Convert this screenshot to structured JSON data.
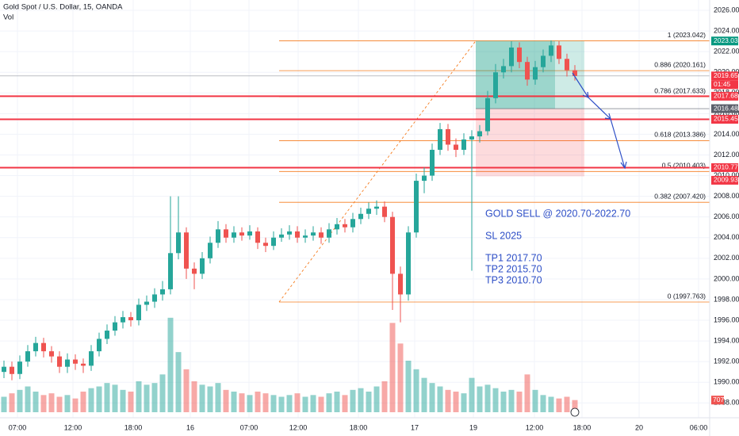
{
  "chart_data": {
    "type": "candlestick",
    "title": "Gold Spot / U.S. Dollar, 15, OANDA",
    "volume_label": "Vol",
    "up_color": "#26a69a",
    "down_color": "#ef5350",
    "xlim": [
      -0.5,
      89
    ],
    "ylim": [
      1987.1,
      2027.0
    ],
    "vol_lim": [
      0,
      6000
    ],
    "grid": true,
    "xticks": [
      {
        "value": 1.7,
        "label": "07:00"
      },
      {
        "value": 8.7,
        "label": "12:00"
      },
      {
        "value": 16.3,
        "label": "18:00"
      },
      {
        "value": 23.5,
        "label": "16"
      },
      {
        "value": 30.9,
        "label": "07:00"
      },
      {
        "value": 37.1,
        "label": "12:00"
      },
      {
        "value": 44.7,
        "label": "18:00"
      },
      {
        "value": 51.8,
        "label": "17"
      },
      {
        "value": 59.2,
        "label": "19"
      },
      {
        "value": 66.9,
        "label": "12:00"
      },
      {
        "value": 72.9,
        "label": "18:00"
      },
      {
        "value": 80.1,
        "label": "20"
      },
      {
        "value": 87.6,
        "label": "06:00"
      }
    ],
    "yticks": [
      {
        "value": 1988,
        "label": "1988.000"
      },
      {
        "value": 1990,
        "label": "1990.000"
      },
      {
        "value": 1992,
        "label": "1992.000"
      },
      {
        "value": 1994,
        "label": "1994.000"
      },
      {
        "value": 1996,
        "label": "1996.000"
      },
      {
        "value": 1998,
        "label": "1998.000"
      },
      {
        "value": 2000,
        "label": "2000.000"
      },
      {
        "value": 2002,
        "label": "2002.000"
      },
      {
        "value": 2004,
        "label": "2004.000"
      },
      {
        "value": 2006,
        "label": "2006.000"
      },
      {
        "value": 2008,
        "label": "2008.000"
      },
      {
        "value": 2010,
        "label": "2010.000"
      },
      {
        "value": 2012,
        "label": "2012.000"
      },
      {
        "value": 2014,
        "label": "2014.000"
      },
      {
        "value": 2016,
        "label": "2016.000"
      },
      {
        "value": 2018,
        "label": "2018.000"
      },
      {
        "value": 2020,
        "label": "2020.000"
      },
      {
        "value": 2022,
        "label": "2022.000"
      },
      {
        "value": 2024,
        "label": "2024.000"
      },
      {
        "value": 2026,
        "label": "2026.000"
      }
    ],
    "ohlc": [
      [
        1991.0,
        1992.1,
        1990.4,
        1991.5
      ],
      [
        1991.5,
        1992.0,
        1990.2,
        1990.8
      ],
      [
        1990.8,
        1992.6,
        1990.3,
        1992.0
      ],
      [
        1992.0,
        1993.6,
        1991.5,
        1993.0
      ],
      [
        1993.0,
        1994.4,
        1992.5,
        1993.8
      ],
      [
        1993.8,
        1994.3,
        1992.4,
        1993.0
      ],
      [
        1993.0,
        1993.5,
        1991.9,
        1992.5
      ],
      [
        1992.5,
        1993.0,
        1990.9,
        1991.5
      ],
      [
        1991.5,
        1992.8,
        1990.9,
        1992.2
      ],
      [
        1992.2,
        1992.7,
        1991.2,
        1991.8
      ],
      [
        1991.8,
        1992.3,
        1990.9,
        1991.6
      ],
      [
        1991.6,
        1993.6,
        1991.1,
        1993.0
      ],
      [
        1993.0,
        1994.8,
        1992.5,
        1994.2
      ],
      [
        1994.2,
        1995.6,
        1993.7,
        1995.0
      ],
      [
        1995.0,
        1996.4,
        1994.5,
        1995.8
      ],
      [
        1995.8,
        1996.9,
        1995.2,
        1996.3
      ],
      [
        1996.3,
        1996.8,
        1995.4,
        1996.0
      ],
      [
        1996.0,
        1998.1,
        1995.5,
        1997.5
      ],
      [
        1997.5,
        1998.4,
        1996.9,
        1997.8
      ],
      [
        1997.8,
        1999.1,
        1997.2,
        1998.5
      ],
      [
        1998.5,
        1999.8,
        1997.9,
        1999.0
      ],
      [
        1999.0,
        2008.0,
        1998.5,
        2002.5
      ],
      [
        2002.5,
        2008.0,
        2001.9,
        2004.5
      ],
      [
        2004.5,
        2005.0,
        2000.0,
        2001.0
      ],
      [
        2001.0,
        2001.6,
        1999.0,
        2000.5
      ],
      [
        2000.5,
        2002.6,
        2000.0,
        2002.0
      ],
      [
        2002.0,
        2004.1,
        2001.5,
        2003.5
      ],
      [
        2003.5,
        2005.6,
        2003.0,
        2004.8
      ],
      [
        2004.8,
        2005.3,
        2003.5,
        2004.0
      ],
      [
        2004.0,
        2005.1,
        2003.5,
        2004.5
      ],
      [
        2004.5,
        2005.0,
        2003.7,
        2004.2
      ],
      [
        2004.2,
        2005.2,
        2003.8,
        2004.6
      ],
      [
        2004.6,
        2005.0,
        2002.9,
        2003.5
      ],
      [
        2003.5,
        2004.0,
        2002.6,
        2003.2
      ],
      [
        2003.2,
        2004.6,
        2002.8,
        2004.0
      ],
      [
        2004.0,
        2004.9,
        2003.6,
        2004.3
      ],
      [
        2004.3,
        2005.2,
        2003.8,
        2004.6
      ],
      [
        2004.6,
        2005.1,
        2003.5,
        2004.0
      ],
      [
        2004.0,
        2004.8,
        2003.5,
        2004.2
      ],
      [
        2004.2,
        2005.1,
        2003.7,
        2004.5
      ],
      [
        2004.5,
        2005.0,
        2003.4,
        2004.0
      ],
      [
        2004.0,
        2005.4,
        2003.5,
        2004.8
      ],
      [
        2004.8,
        2005.9,
        2004.3,
        2005.3
      ],
      [
        2005.3,
        2005.8,
        2004.5,
        2005.0
      ],
      [
        2005.0,
        2006.4,
        2004.5,
        2005.8
      ],
      [
        2005.8,
        2006.9,
        2005.3,
        2006.3
      ],
      [
        2006.3,
        2007.4,
        2005.8,
        2006.8
      ],
      [
        2006.8,
        2007.6,
        2006.2,
        2007.0
      ],
      [
        2007.0,
        2007.5,
        2005.5,
        2006.0
      ],
      [
        2006.0,
        2006.5,
        1997.0,
        2000.5
      ],
      [
        2000.5,
        2001.2,
        1995.8,
        1998.5
      ],
      [
        1998.5,
        2005.1,
        1997.9,
        2004.5
      ],
      [
        2004.5,
        2010.2,
        2004.0,
        2009.5
      ],
      [
        2009.5,
        2010.8,
        2008.3,
        2010.0
      ],
      [
        2010.0,
        2013.1,
        2009.5,
        2012.5
      ],
      [
        2012.5,
        2015.1,
        2012.0,
        2014.5
      ],
      [
        2014.5,
        2015.0,
        2012.4,
        2013.0
      ],
      [
        2013.0,
        2013.6,
        2011.8,
        2012.5
      ],
      [
        2012.5,
        2014.1,
        2012.0,
        2013.5
      ],
      [
        2013.5,
        2014.4,
        2000.8,
        2013.8
      ],
      [
        2013.8,
        2014.9,
        2013.2,
        2014.3
      ],
      [
        2014.3,
        2018.2,
        2013.9,
        2017.5
      ],
      [
        2017.5,
        2020.8,
        2017.0,
        2020.0
      ],
      [
        2020.0,
        2021.3,
        2019.4,
        2020.6
      ],
      [
        2020.6,
        2023.0,
        2020.0,
        2022.4
      ],
      [
        2022.4,
        2022.9,
        2020.4,
        2021.0
      ],
      [
        2021.0,
        2021.5,
        2018.7,
        2019.3
      ],
      [
        2019.3,
        2021.1,
        2018.8,
        2020.5
      ],
      [
        2020.5,
        2022.2,
        2020.0,
        2021.6
      ],
      [
        2021.6,
        2023.1,
        2021.0,
        2022.6
      ],
      [
        2022.6,
        2023.0,
        2020.8,
        2021.3
      ],
      [
        2021.3,
        2021.8,
        2019.6,
        2020.2
      ],
      [
        2020.2,
        2020.7,
        2019.2,
        2019.65
      ]
    ],
    "volume": [
      900,
      1100,
      1300,
      1500,
      1200,
      1000,
      1100,
      900,
      1000,
      800,
      1200,
      1400,
      1500,
      1700,
      1600,
      1300,
      1200,
      1800,
      1600,
      1700,
      2200,
      5500,
      3500,
      2500,
      1800,
      1600,
      1500,
      1700,
      1300,
      1200,
      1100,
      1000,
      1200,
      1100,
      1000,
      900,
      1000,
      1100,
      900,
      1000,
      900,
      1100,
      1200,
      1000,
      1300,
      1400,
      1200,
      1500,
      1800,
      5200,
      4000,
      3000,
      2500,
      2000,
      1700,
      1500,
      1300,
      1200,
      1100,
      2000,
      1500,
      1600,
      1400,
      1200,
      1300,
      1200,
      2200,
      1300,
      1000,
      900,
      800,
      900,
      707
    ],
    "current_price": {
      "value": 2019.65,
      "label": "2019.650",
      "countdown": "01:45",
      "color": "#f23645"
    },
    "horizontal_lines": {
      "color": "#f23645",
      "values": [
        2017.686,
        2015.454,
        2010.776
      ]
    },
    "position": {
      "entry": 2016.484,
      "target": 2023.033,
      "stop": 2009.935,
      "x_start": 59.5,
      "x_fill_end": 69.5,
      "x_end": 73.2,
      "target_color": "#089981",
      "stop_color": "#f23645",
      "entry_color": "#5d606b"
    },
    "fib": {
      "color": "#f57c1f",
      "x_start": 34.7,
      "trend_end": 59.5,
      "levels": [
        {
          "value": 2023.042,
          "label": "1 (2023.042)"
        },
        {
          "value": 2020.161,
          "label": "0.886 (2020.161)"
        },
        {
          "value": 2017.633,
          "label": "0.786 (2017.633)"
        },
        {
          "value": 2013.386,
          "label": "0.618 (2013.386)"
        },
        {
          "value": 2010.403,
          "label": "0.5 (2010.403)"
        },
        {
          "value": 2007.42,
          "label": "0.382 (2007.420)"
        },
        {
          "value": 1997.763,
          "label": "0 (1997.763)"
        }
      ]
    },
    "annotations": [
      "GOLD SELL @ 2020.70-2022.70",
      "SL 2025",
      "TP1 2017.70",
      "TP2 2015.70",
      "TP3 2010.70"
    ]
  }
}
